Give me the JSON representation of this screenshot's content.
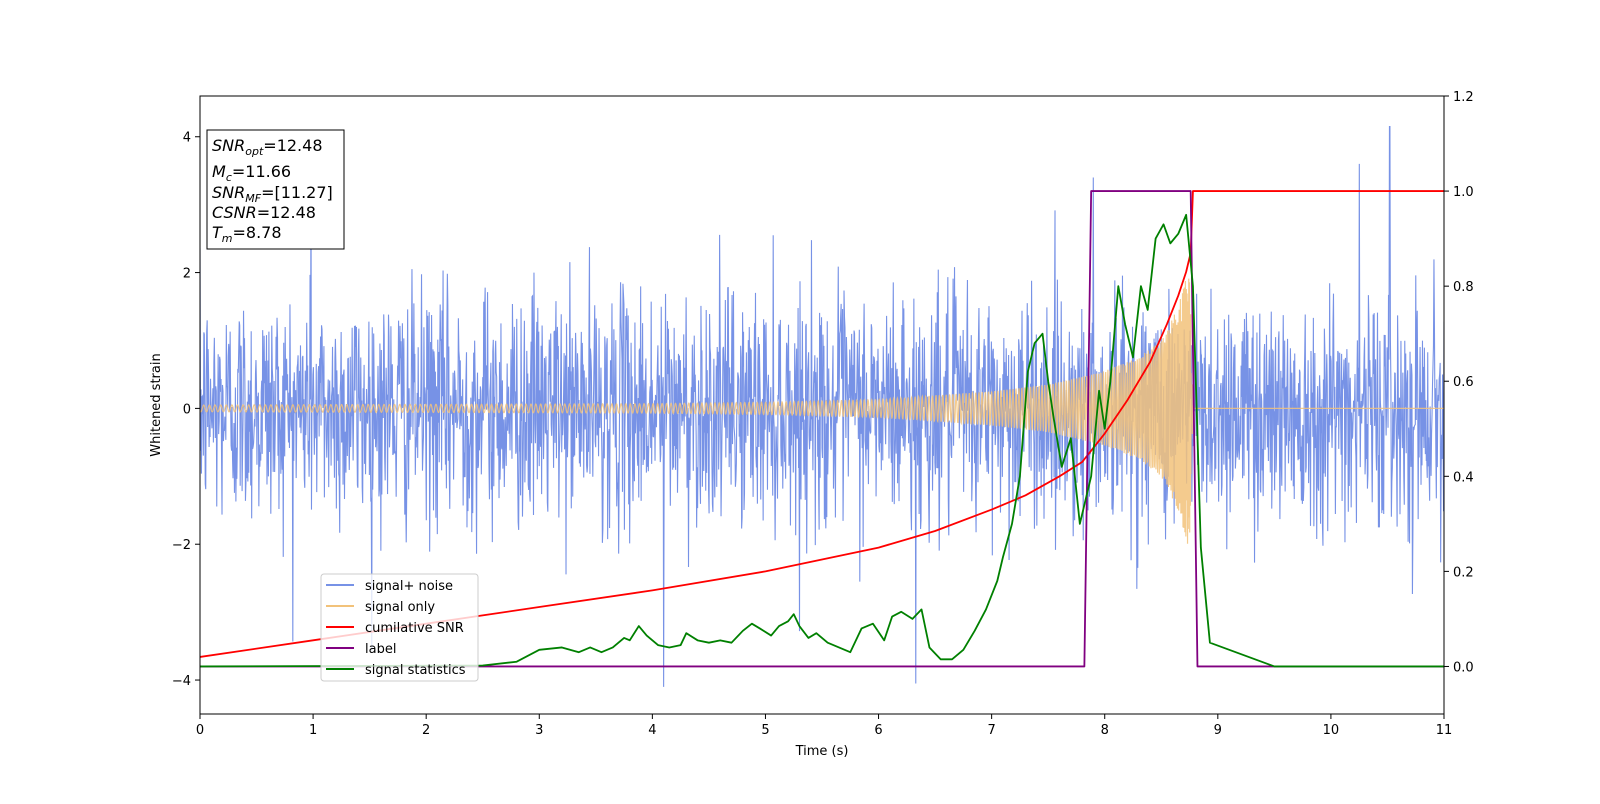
{
  "chart_data": {
    "type": "line",
    "xlabel": "Time (s)",
    "ylabel": "Whitened strain",
    "xlim": [
      0,
      11
    ],
    "ylim": [
      -4.5,
      4.6
    ],
    "y2lim": [
      -0.1,
      1.2
    ],
    "xticks": [
      "0",
      "1",
      "2",
      "3",
      "4",
      "5",
      "6",
      "7",
      "8",
      "9",
      "10",
      "11"
    ],
    "yticks": [
      "−4",
      "−2",
      "0",
      "2",
      "4"
    ],
    "y2ticks": [
      "0.0",
      "0.2",
      "0.4",
      "0.6",
      "0.8",
      "1.0",
      "1.2"
    ],
    "grid": false,
    "legend_position": "lower-left",
    "info_box": {
      "snr_opt": "12.48",
      "mc": "11.66",
      "snr_mf": "[11.27]",
      "csnr": "12.48",
      "tm": "8.78"
    },
    "series": [
      {
        "name": "signal+ noise",
        "color": "#7792e6",
        "axis": "left",
        "description_values": {
          "noise_sigma": 0.85,
          "approx_range": [
            -2.5,
            2.5
          ],
          "spikes": [
            [
              0.98,
              3.4
            ],
            [
              4.1,
              -4.1
            ],
            [
              6.33,
              -4.05
            ],
            [
              7.9,
              3.4
            ],
            [
              10.25,
              3.6
            ],
            [
              10.52,
              4.15
            ]
          ]
        }
      },
      {
        "name": "signal only",
        "color": "#f2c27a",
        "axis": "left",
        "envelope": [
          [
            0,
            0.05
          ],
          [
            2,
            0.06
          ],
          [
            4,
            0.07
          ],
          [
            5,
            0.09
          ],
          [
            6,
            0.13
          ],
          [
            7,
            0.25
          ],
          [
            7.5,
            0.35
          ],
          [
            8,
            0.55
          ],
          [
            8.3,
            0.75
          ],
          [
            8.5,
            1.0
          ],
          [
            8.65,
            1.5
          ],
          [
            8.75,
            2.1
          ],
          [
            8.78,
            0.0
          ],
          [
            11,
            0.0
          ]
        ]
      },
      {
        "name": "cumilative SNR",
        "color": "#ff0000",
        "axis": "right",
        "x": [
          0,
          1,
          2,
          3,
          4,
          5,
          5.5,
          6,
          6.5,
          7,
          7.3,
          7.6,
          7.8,
          8.0,
          8.2,
          8.4,
          8.55,
          8.65,
          8.72,
          8.76,
          8.78,
          11
        ],
        "y": [
          0.02,
          0.055,
          0.09,
          0.125,
          0.16,
          0.2,
          0.225,
          0.25,
          0.285,
          0.33,
          0.36,
          0.4,
          0.43,
          0.49,
          0.56,
          0.64,
          0.72,
          0.78,
          0.83,
          0.87,
          1.0,
          1.0
        ]
      },
      {
        "name": "label",
        "color": "#800080",
        "axis": "right",
        "x": [
          0,
          7.82,
          7.88,
          8.76,
          8.82,
          11
        ],
        "y": [
          0.0,
          0.0,
          1.0,
          1.0,
          0.0,
          0.0
        ]
      },
      {
        "name": "signal statistics",
        "color": "#008000",
        "axis": "right",
        "x": [
          0,
          2.5,
          2.8,
          3.0,
          3.2,
          3.35,
          3.45,
          3.55,
          3.65,
          3.75,
          3.8,
          3.88,
          3.95,
          4.05,
          4.15,
          4.25,
          4.3,
          4.4,
          4.5,
          4.6,
          4.7,
          4.8,
          4.88,
          4.95,
          5.05,
          5.12,
          5.2,
          5.25,
          5.3,
          5.38,
          5.45,
          5.55,
          5.65,
          5.75,
          5.85,
          5.95,
          6.05,
          6.12,
          6.2,
          6.3,
          6.38,
          6.45,
          6.55,
          6.65,
          6.75,
          6.85,
          6.95,
          7.05,
          7.1,
          7.18,
          7.25,
          7.32,
          7.38,
          7.45,
          7.5,
          7.55,
          7.62,
          7.7,
          7.78,
          7.82,
          7.88,
          7.95,
          8.0,
          8.05,
          8.12,
          8.18,
          8.25,
          8.32,
          8.38,
          8.45,
          8.52,
          8.58,
          8.65,
          8.72,
          8.78,
          8.85,
          8.93,
          9.5,
          10,
          11
        ],
        "y": [
          0.0,
          0.002,
          0.01,
          0.035,
          0.04,
          0.03,
          0.04,
          0.03,
          0.04,
          0.06,
          0.055,
          0.085,
          0.065,
          0.045,
          0.04,
          0.045,
          0.07,
          0.055,
          0.05,
          0.055,
          0.05,
          0.075,
          0.09,
          0.08,
          0.065,
          0.085,
          0.095,
          0.11,
          0.085,
          0.06,
          0.07,
          0.05,
          0.04,
          0.03,
          0.08,
          0.09,
          0.055,
          0.105,
          0.115,
          0.1,
          0.12,
          0.04,
          0.015,
          0.015,
          0.035,
          0.075,
          0.12,
          0.18,
          0.23,
          0.3,
          0.4,
          0.62,
          0.68,
          0.7,
          0.6,
          0.52,
          0.42,
          0.48,
          0.3,
          0.34,
          0.4,
          0.58,
          0.5,
          0.6,
          0.8,
          0.72,
          0.65,
          0.8,
          0.75,
          0.9,
          0.93,
          0.89,
          0.91,
          0.95,
          0.8,
          0.25,
          0.05,
          0.0,
          0.0,
          0.0
        ]
      }
    ]
  }
}
